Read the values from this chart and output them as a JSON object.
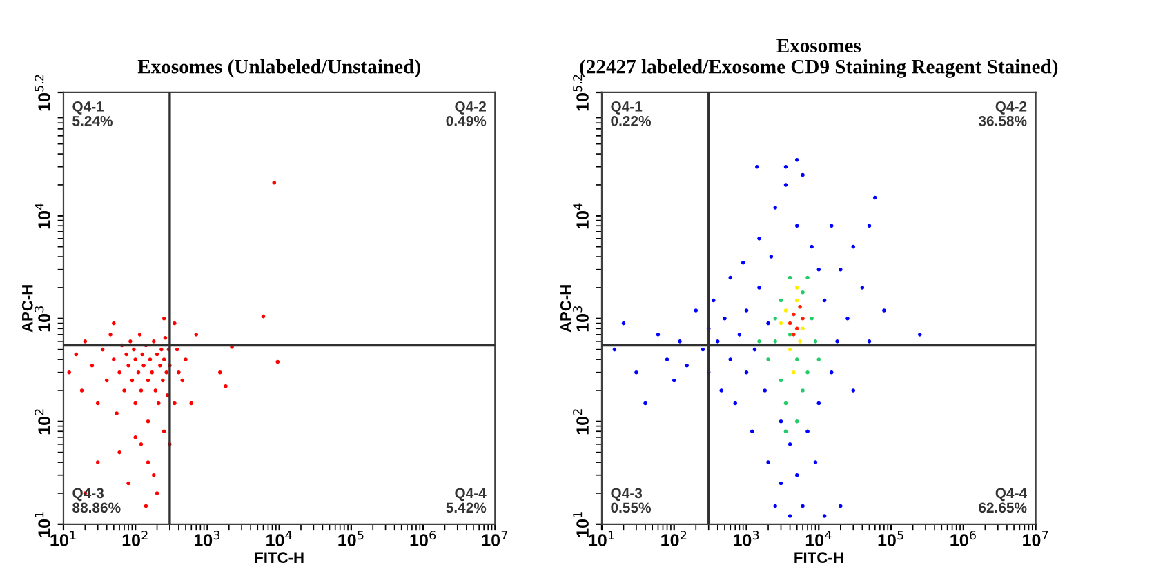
{
  "chart_data": [
    {
      "type": "scatter",
      "title": "Exosomes (Unlabeled/Unstained)",
      "xlabel": "FITC-H",
      "ylabel": "APC-H",
      "log": "xy",
      "grid": false,
      "legend": false,
      "marker": "circle",
      "xlim": [
        10,
        10000000
      ],
      "ylim": [
        10,
        158489
      ],
      "xticks": [
        {
          "value": 10,
          "label": "10$^{1}$"
        },
        {
          "value": 100,
          "label": "10$^{2}$"
        },
        {
          "value": 1000,
          "label": "10$^{3}$"
        },
        {
          "value": 10000,
          "label": "10$^{4}$"
        },
        {
          "value": 100000,
          "label": "10$^{5}$"
        },
        {
          "value": 1000000,
          "label": "10$^{6}$"
        },
        {
          "value": 10000000,
          "label": "10$^{7}$"
        }
      ],
      "yticks": [
        {
          "value": 10,
          "label": "10$^{1}$"
        },
        {
          "value": 100,
          "label": "10$^{2}$"
        },
        {
          "value": 1000,
          "label": "10$^{3}$"
        },
        {
          "value": 10000,
          "label": "10$^{4}$"
        },
        {
          "value": 158489,
          "label": "10$^{5.2}$"
        }
      ],
      "ref_lines": [
        {
          "axis": "x",
          "value": 300,
          "color": "#303030"
        },
        {
          "axis": "y",
          "value": 550,
          "color": "#303030"
        }
      ],
      "annotations": [
        "Q4-1\n5.24%",
        "Q4-2\n0.49%",
        "Q4-3\n88.86%",
        "Q4-4\n5.42%"
      ],
      "series": [
        {
          "color": "#ff0000",
          "x": [
            12,
            15,
            18,
            20,
            25,
            30,
            35,
            40,
            45,
            50,
            55,
            60,
            65,
            70,
            75,
            80,
            85,
            90,
            95,
            100,
            100,
            110,
            115,
            120,
            125,
            130,
            140,
            150,
            150,
            160,
            170,
            180,
            190,
            200,
            210,
            220,
            230,
            240,
            250,
            260,
            270,
            280,
            290,
            300,
            120,
            150,
            180,
            200,
            140,
            100,
            60,
            30,
            20,
            80,
            250,
            300,
            350,
            400,
            380,
            450,
            500,
            600,
            700,
            350,
            250,
            50,
            1500,
            1800,
            2200,
            6000,
            9500,
            8500
          ],
          "values": [
            300,
            450,
            200,
            600,
            350,
            150,
            500,
            250,
            700,
            400,
            120,
            300,
            550,
            200,
            450,
            350,
            600,
            250,
            500,
            150,
            400,
            300,
            700,
            200,
            450,
            350,
            550,
            250,
            100,
            400,
            300,
            600,
            200,
            450,
            150,
            350,
            500,
            250,
            400,
            650,
            300,
            180,
            500,
            350,
            60,
            40,
            30,
            20,
            15,
            70,
            50,
            40,
            20,
            25,
            80,
            60,
            150,
            300,
            500,
            250,
            400,
            150,
            700,
            900,
            1000,
            900,
            300,
            220,
            530,
            1050,
            380,
            21000
          ]
        }
      ]
    },
    {
      "type": "scatter",
      "title": "Exosomes\n(22427 labeled/Exosome CD9 Staining Reagent Stained)",
      "xlabel": "FITC-H",
      "ylabel": "APC-H",
      "log": "xy",
      "grid": false,
      "legend": false,
      "marker": "circle",
      "xlim": [
        10,
        10000000
      ],
      "ylim": [
        10,
        158489
      ],
      "xticks": [
        {
          "value": 10,
          "label": "10$^{1}$"
        },
        {
          "value": 100,
          "label": "10$^{2}$"
        },
        {
          "value": 1000,
          "label": "10$^{3}$"
        },
        {
          "value": 10000,
          "label": "10$^{4}$"
        },
        {
          "value": 100000,
          "label": "10$^{5}$"
        },
        {
          "value": 1000000,
          "label": "10$^{6}$"
        },
        {
          "value": 10000000,
          "label": "10$^{7}$"
        }
      ],
      "yticks": [
        {
          "value": 10,
          "label": "10$^{1}$"
        },
        {
          "value": 100,
          "label": "10$^{2}$"
        },
        {
          "value": 1000,
          "label": "10$^{3}$"
        },
        {
          "value": 10000,
          "label": "10$^{4}$"
        },
        {
          "value": 158489,
          "label": "10$^{5.2}$"
        }
      ],
      "ref_lines": [
        {
          "axis": "x",
          "value": 300,
          "color": "#303030"
        },
        {
          "axis": "y",
          "value": 550,
          "color": "#303030"
        }
      ],
      "annotations": [
        "Q4-1\n0.22%",
        "Q4-2\n36.58%",
        "Q4-3\n0.55%",
        "Q4-4\n62.65%"
      ],
      "series": [
        {
          "color": "#0000ff",
          "x": [
            20,
            15,
            30,
            40,
            60,
            80,
            100,
            120,
            150,
            200,
            250,
            300,
            300,
            350,
            400,
            450,
            500,
            600,
            600,
            700,
            800,
            900,
            1000,
            1000,
            1200,
            1300,
            1500,
            1500,
            1800,
            2000,
            2000,
            2200,
            2500,
            2500,
            3000,
            3000,
            3500,
            4000,
            4000,
            5000,
            5000,
            6000,
            6000,
            7000,
            8000,
            9000,
            10000,
            10000,
            12000,
            12000,
            15000,
            15000,
            18000,
            20000,
            20000,
            25000,
            30000,
            30000,
            40000,
            50000,
            50000,
            60000,
            80000,
            250000,
            3500,
            1400,
            5000
          ],
          "values": [
            900,
            500,
            300,
            150,
            700,
            400,
            250,
            600,
            350,
            1200,
            500,
            800,
            300,
            1500,
            600,
            200,
            1000,
            400,
            2500,
            150,
            700,
            3500,
            300,
            1200,
            80,
            500,
            2000,
            6000,
            200,
            40,
            900,
            4000,
            15,
            12000,
            100,
            25,
            20000,
            12,
            60,
            30,
            8000,
            15,
            25000,
            80,
            5000,
            40,
            150,
            3000,
            12,
            1500,
            300,
            8000,
            600,
            15,
            3000,
            1000,
            5000,
            200,
            2000,
            8000,
            600,
            15000,
            1200,
            700,
            30000,
            30000,
            35000
          ]
        },
        {
          "color": "#22cc66",
          "x": [
            1500,
            2000,
            2500,
            3000,
            3000,
            3500,
            4000,
            4000,
            5000,
            5000,
            6000,
            7000,
            8000,
            9000,
            3500,
            6000,
            10000,
            2500,
            7000
          ],
          "values": [
            600,
            400,
            1000,
            250,
            1500,
            150,
            700,
            2500,
            100,
            400,
            1800,
            300,
            1000,
            600,
            80,
            200,
            400,
            600,
            2500
          ]
        },
        {
          "color": "#ffee00",
          "x": [
            3500,
            4000,
            5000,
            4500,
            6000,
            5000,
            3000,
            5500
          ],
          "values": [
            1200,
            500,
            1500,
            300,
            800,
            2000,
            900,
            600
          ]
        },
        {
          "color": "#ff2000",
          "x": [
            4000,
            4500,
            5000,
            5500,
            4500,
            6000
          ],
          "values": [
            900,
            1100,
            800,
            1300,
            700,
            1000
          ]
        }
      ]
    }
  ]
}
